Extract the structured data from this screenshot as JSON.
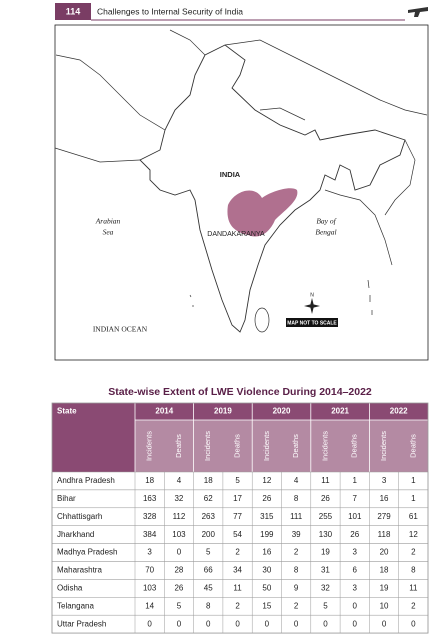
{
  "header": {
    "page_number": "114",
    "title": "Challenges to Internal Security of India"
  },
  "map": {
    "labels": {
      "india": "INDIA",
      "region": "DANDAKARANYA",
      "arabian_sea": [
        "Arabian",
        "Sea"
      ],
      "bay": [
        "Bay of",
        "Bengal"
      ],
      "ocean": "INDIAN OCEAN",
      "scale_note": "MAP NOT TO SCALE",
      "north": "N"
    }
  },
  "table": {
    "title": "State-wise Extent of LWE Violence During 2014–2022",
    "state_header": "State",
    "years": [
      "2014",
      "2019",
      "2020",
      "2021",
      "2022"
    ],
    "subheaders": [
      "Incidents",
      "Deaths"
    ],
    "rows": [
      [
        "Andhra Pradesh",
        18,
        4,
        18,
        5,
        12,
        4,
        11,
        1,
        3,
        1
      ],
      [
        "Bihar",
        163,
        32,
        62,
        17,
        26,
        8,
        26,
        7,
        16,
        1
      ],
      [
        "Chhattisgarh",
        328,
        112,
        263,
        77,
        315,
        111,
        255,
        101,
        279,
        61
      ],
      [
        "Jharkhand",
        384,
        103,
        200,
        54,
        199,
        39,
        130,
        26,
        118,
        12
      ],
      [
        "Madhya Pradesh",
        3,
        0,
        5,
        2,
        16,
        2,
        19,
        3,
        20,
        2
      ],
      [
        "Maharashtra",
        70,
        28,
        66,
        34,
        30,
        8,
        31,
        6,
        18,
        8
      ],
      [
        "Odisha",
        103,
        26,
        45,
        11,
        50,
        9,
        32,
        3,
        19,
        11
      ],
      [
        "Telangana",
        14,
        5,
        8,
        2,
        15,
        2,
        5,
        0,
        10,
        2
      ],
      [
        "Uttar Pradesh",
        0,
        0,
        0,
        0,
        0,
        0,
        0,
        0,
        0,
        0
      ]
    ]
  }
}
